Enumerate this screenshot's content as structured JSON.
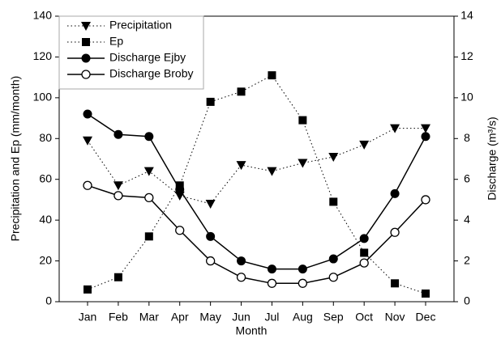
{
  "chart_data": {
    "type": "line",
    "categories": [
      "Jan",
      "Feb",
      "Mar",
      "Apr",
      "May",
      "Jun",
      "Jul",
      "Aug",
      "Sep",
      "Oct",
      "Nov",
      "Dec"
    ],
    "x_label": "Month",
    "y_label": "Precipitation and Ep (mm/month)",
    "y2_label": "Discharge (m³/s)",
    "ylim": [
      0,
      140
    ],
    "yticks": [
      0,
      20,
      40,
      60,
      80,
      100,
      120,
      140
    ],
    "y2lim": [
      0,
      14
    ],
    "y2ticks": [
      0,
      2,
      4,
      6,
      8,
      10,
      12,
      14
    ],
    "legend": "top-left",
    "series": [
      {
        "name": "Precipitation",
        "color": "#000000",
        "marker": "triangle-down",
        "line": "dotted",
        "values": [
          79,
          57,
          64,
          52,
          48,
          67,
          64,
          68,
          71,
          77,
          85,
          85
        ]
      },
      {
        "name": "Ep",
        "color": "#000000",
        "marker": "square",
        "line": "dotted",
        "values": [
          6,
          12,
          32,
          57,
          98,
          103,
          111,
          89,
          49,
          24,
          9,
          4
        ]
      },
      {
        "name": "Discharge Ejby",
        "color": "#000000",
        "marker": "circle",
        "line": "solid",
        "axis": "y2",
        "values": [
          9.2,
          8.2,
          8.1,
          5.5,
          3.2,
          2.0,
          1.6,
          1.6,
          2.1,
          3.1,
          5.3,
          8.1
        ]
      },
      {
        "name": "Discharge Broby",
        "color": "#000000",
        "marker": "open-circle",
        "line": "solid",
        "axis": "y2",
        "values": [
          5.7,
          5.2,
          5.1,
          3.5,
          2.0,
          1.2,
          0.9,
          0.9,
          1.2,
          1.9,
          3.4,
          5.0
        ]
      }
    ]
  }
}
